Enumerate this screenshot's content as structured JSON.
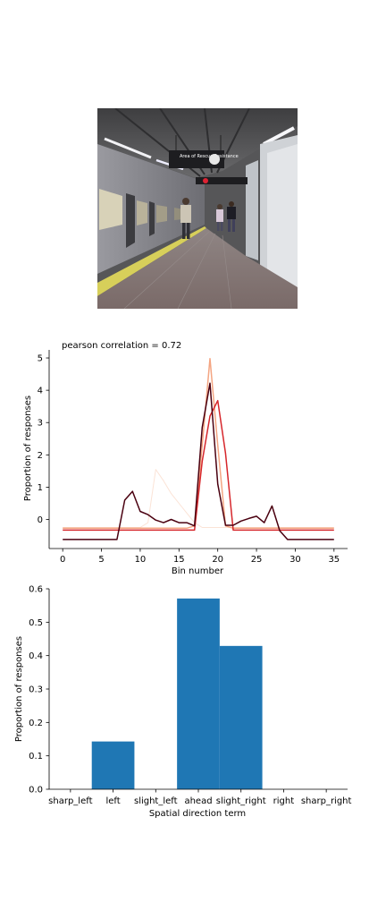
{
  "photo": {
    "description": "",
    "signs": [
      "Area of Rescue Assistance"
    ]
  },
  "chart_data": [
    {
      "type": "line",
      "title": "pearson correlation = 0.72",
      "xlabel": "Bin number",
      "ylabel": "Proportion of responses",
      "xlim": [
        -1.75,
        36.75
      ],
      "ylim": [
        -0.9,
        5.25
      ],
      "xticks": [
        0,
        5,
        10,
        15,
        20,
        25,
        30,
        35
      ],
      "yticks": [
        0,
        1,
        2,
        3,
        4,
        5
      ],
      "grid": false,
      "legend": "none",
      "series": [
        {
          "color": "#fbe3d6",
          "width": 1,
          "points": [
            [
              0,
              -0.25
            ],
            [
              10,
              -0.25
            ],
            [
              11,
              -0.1
            ],
            [
              12,
              1.55
            ],
            [
              13,
              1.2
            ],
            [
              14,
              0.8
            ],
            [
              15,
              0.5
            ],
            [
              16,
              0.2
            ],
            [
              17,
              -0.1
            ],
            [
              18,
              -0.25
            ],
            [
              35,
              -0.25
            ]
          ]
        },
        {
          "color": "#f4a582",
          "width": 1.5,
          "points": [
            [
              0,
              -0.27
            ],
            [
              16,
              -0.27
            ],
            [
              17,
              -0.2
            ],
            [
              18,
              2.3
            ],
            [
              19,
              4.98
            ],
            [
              20,
              2.3
            ],
            [
              21,
              -0.2
            ],
            [
              22,
              -0.27
            ],
            [
              35,
              -0.27
            ]
          ]
        },
        {
          "color": "#d6262b",
          "width": 1.5,
          "points": [
            [
              0,
              -0.33
            ],
            [
              17,
              -0.33
            ],
            [
              18,
              1.8
            ],
            [
              19,
              3.2
            ],
            [
              20,
              3.68
            ],
            [
              21,
              2.05
            ],
            [
              22,
              -0.33
            ],
            [
              35,
              -0.33
            ]
          ]
        },
        {
          "color": "#4a0010",
          "width": 1.5,
          "points": [
            [
              0,
              -0.62
            ],
            [
              7,
              -0.62
            ],
            [
              8,
              0.6
            ],
            [
              9,
              0.87
            ],
            [
              10,
              0.25
            ],
            [
              11,
              0.15
            ],
            [
              12,
              -0.02
            ],
            [
              13,
              -0.1
            ],
            [
              14,
              0.0
            ],
            [
              15,
              -0.1
            ],
            [
              16,
              -0.1
            ],
            [
              17,
              -0.2
            ],
            [
              18,
              2.85
            ],
            [
              19,
              4.22
            ],
            [
              20,
              1.1
            ],
            [
              21,
              -0.18
            ],
            [
              22,
              -0.18
            ],
            [
              23,
              -0.05
            ],
            [
              24,
              0.03
            ],
            [
              25,
              0.1
            ],
            [
              26,
              -0.1
            ],
            [
              27,
              0.42
            ],
            [
              28,
              -0.35
            ],
            [
              29,
              -0.62
            ],
            [
              35,
              -0.62
            ]
          ]
        }
      ]
    },
    {
      "type": "bar",
      "xlabel": "Spatial direction term",
      "ylabel": "Proportion of responses",
      "categories": [
        "sharp_left",
        "left",
        "slight_left",
        "ahead",
        "slight_right",
        "right",
        "sharp_right"
      ],
      "values": [
        0.0,
        0.143,
        0.0,
        0.571,
        0.429,
        0.0,
        0.0
      ],
      "ylim": [
        0,
        0.6
      ],
      "yticks": [
        "0.0",
        "0.1",
        "0.2",
        "0.3",
        "0.4",
        "0.5",
        "0.6"
      ],
      "bar_color": "#1f77b4",
      "grid": false
    }
  ]
}
